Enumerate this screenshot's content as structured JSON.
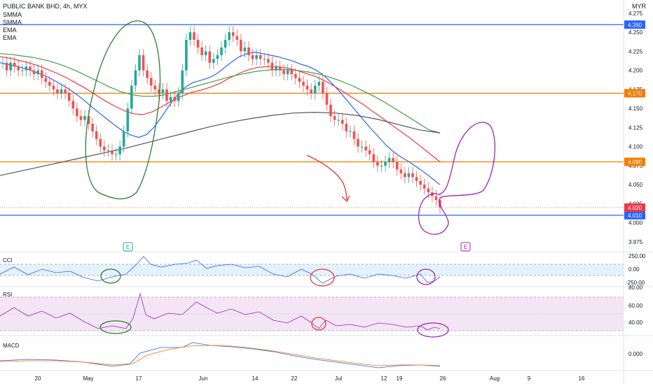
{
  "header": {
    "title": "PUBLIC BANK BHD, 4h, MYX",
    "indicators": [
      "SMMA",
      "SMMA",
      "EMA",
      "EMA"
    ],
    "currency": "MYR"
  },
  "price_axis": {
    "ticks": [
      "4.275",
      "4.250",
      "4.225",
      "4.200",
      "4.175",
      "4.150",
      "4.125",
      "4.100",
      "4.075",
      "4.050",
      "4.025",
      "4.000",
      "3.975"
    ]
  },
  "level_lines": [
    {
      "label": "4.260",
      "color": "#2962ff"
    },
    {
      "label": "4.170",
      "color": "#f57c00"
    },
    {
      "label": "4.080",
      "color": "#f57c00"
    },
    {
      "label": "4.010",
      "color": "#2962ff"
    }
  ],
  "last_price": {
    "label": "4.020",
    "color": "#f23645"
  },
  "events": [
    "E",
    "E"
  ],
  "panes": {
    "cci": {
      "label": "CCI",
      "ticks": [
        "250.00",
        "0.00",
        "-250.00"
      ]
    },
    "rsi": {
      "label": "RSI",
      "ticks": [
        "80.00",
        "60.00",
        "40.00"
      ]
    },
    "macd": {
      "label": "MACD",
      "ticks": [
        "0.000"
      ]
    }
  },
  "time_axis": {
    "labels": [
      "20",
      "May",
      "17",
      "Jun",
      "14",
      "22",
      "Jul",
      "12",
      "19",
      "26",
      "Aug",
      "9",
      "16"
    ]
  },
  "colors": {
    "bull": "#26a69a",
    "bear": "#ef5350",
    "ema_fast": "#2962ff",
    "ema_slow": "#f23645",
    "smma_green": "#43a047",
    "smma_black": "#555555",
    "annot_green": "#2e7d32",
    "annot_red": "#e53935",
    "annot_purple": "#9c27b0"
  },
  "chart_data": {
    "type": "candlestick",
    "symbol": "PUBLIC BANK BHD",
    "interval": "4h",
    "ylim": [
      3.975,
      4.285
    ],
    "close": [
      4.21,
      4.2,
      4.21,
      4.205,
      4.2,
      4.2,
      4.205,
      4.2,
      4.195,
      4.2,
      4.19,
      4.185,
      4.18,
      4.175,
      4.17,
      4.175,
      4.17,
      4.16,
      4.15,
      4.14,
      4.135,
      4.14,
      4.13,
      4.12,
      4.11,
      4.1,
      4.095,
      4.095,
      4.09,
      4.09,
      4.1,
      4.12,
      4.15,
      4.18,
      4.2,
      4.22,
      4.2,
      4.19,
      4.18,
      4.175,
      4.17,
      4.175,
      4.16,
      4.165,
      4.16,
      4.17,
      4.2,
      4.24,
      4.25,
      4.24,
      4.23,
      4.22,
      4.225,
      4.21,
      4.215,
      4.22,
      4.23,
      4.24,
      4.25,
      4.245,
      4.24,
      4.225,
      4.23,
      4.22,
      4.215,
      4.22,
      4.215,
      4.215,
      4.21,
      4.2,
      4.205,
      4.2,
      4.195,
      4.2,
      4.195,
      4.19,
      4.185,
      4.18,
      4.175,
      4.17,
      4.18,
      4.185,
      4.17,
      4.155,
      4.14,
      4.135,
      4.135,
      4.13,
      4.12,
      4.12,
      4.11,
      4.1,
      4.1,
      4.095,
      4.09,
      4.08,
      4.075,
      4.075,
      4.08,
      4.085,
      4.08,
      4.07,
      4.065,
      4.06,
      4.065,
      4.06,
      4.055,
      4.05,
      4.045,
      4.04,
      4.035,
      4.03,
      4.02
    ],
    "series": [
      {
        "name": "EMA",
        "values": [
          4.21,
          4.208,
          4.206,
          4.203,
          4.2,
          4.196,
          4.192,
          4.187,
          4.181,
          4.175,
          4.168,
          4.16,
          4.151,
          4.143,
          4.135,
          4.127,
          4.12,
          4.115,
          4.112,
          4.116,
          4.126,
          4.14,
          4.155,
          4.168,
          4.178,
          4.184,
          4.187,
          4.19,
          4.195,
          4.203,
          4.211,
          4.218,
          4.222,
          4.224,
          4.222,
          4.22,
          4.218,
          4.215,
          4.212,
          4.208,
          4.205,
          4.2,
          4.193,
          4.183,
          4.172,
          4.16,
          4.148,
          4.136,
          4.124,
          4.113,
          4.102,
          4.093,
          4.086,
          4.08,
          4.073,
          4.066,
          4.058,
          4.05
        ]
      },
      {
        "name": "EMA",
        "values": [
          4.218,
          4.216,
          4.213,
          4.21,
          4.206,
          4.201,
          4.196,
          4.19,
          4.183,
          4.176,
          4.168,
          4.16,
          4.153,
          4.147,
          4.143,
          4.142,
          4.146,
          4.153,
          4.16,
          4.166,
          4.171,
          4.174,
          4.178,
          4.183,
          4.19,
          4.196,
          4.201,
          4.204,
          4.205,
          4.205,
          4.203,
          4.2,
          4.196,
          4.192,
          4.186,
          4.179,
          4.171,
          4.163,
          4.155,
          4.146,
          4.137,
          4.128,
          4.119,
          4.11,
          4.1,
          4.09,
          4.08
        ]
      },
      {
        "name": "SMMA",
        "values": [
          4.222,
          4.221,
          4.219,
          4.217,
          4.214,
          4.21,
          4.205,
          4.199,
          4.192,
          4.185,
          4.178,
          4.172,
          4.168,
          4.166,
          4.166,
          4.168,
          4.172,
          4.176,
          4.18,
          4.184,
          4.188,
          4.192,
          4.195,
          4.198,
          4.2,
          4.201,
          4.201,
          4.2,
          4.198,
          4.195,
          4.191,
          4.186,
          4.18,
          4.173,
          4.166,
          4.158,
          4.149,
          4.14,
          4.131,
          4.122,
          4.118
        ]
      },
      {
        "name": "SMMA",
        "values": [
          4.062,
          4.068,
          4.074,
          4.08,
          4.086,
          4.092,
          4.098,
          4.105,
          4.112,
          4.119,
          4.126,
          4.132,
          4.137,
          4.141,
          4.144,
          4.145,
          4.144,
          4.141,
          4.136,
          4.129,
          4.122,
          4.118
        ]
      }
    ],
    "levels": [
      4.26,
      4.17,
      4.08,
      4.01
    ]
  }
}
